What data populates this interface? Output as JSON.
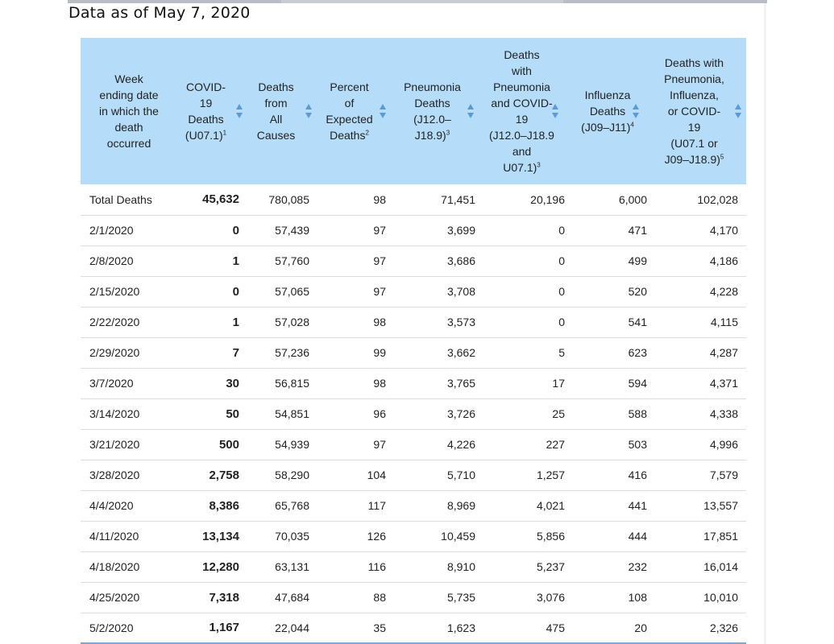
{
  "page_title": "Data as of May 7, 2020",
  "columns": [
    {
      "lines": [
        "Week",
        "ending date",
        "in which the",
        "death",
        "occurred"
      ],
      "sup": ""
    },
    {
      "lines": [
        "COVID-",
        "19",
        "Deaths",
        "(U07.1)"
      ],
      "sup": "1"
    },
    {
      "lines": [
        "Deaths",
        "from",
        "All",
        "Causes"
      ],
      "sup": ""
    },
    {
      "lines": [
        "Percent",
        "of",
        "Expected",
        "Deaths"
      ],
      "sup": "2"
    },
    {
      "lines": [
        "Pneumonia",
        "Deaths",
        "(J12.0–",
        "J18.9)"
      ],
      "sup": "3"
    },
    {
      "lines": [
        "Deaths",
        "with",
        "Pneumonia",
        "and COVID-",
        "19",
        "(J12.0–J18.9",
        "and",
        "U07.1)"
      ],
      "sup": "3"
    },
    {
      "lines": [
        "Influenza",
        "Deaths",
        "(J09–J11)"
      ],
      "sup": "4"
    },
    {
      "lines": [
        "Deaths with",
        "Pneumonia,",
        "Influenza,",
        "or COVID-",
        "19",
        "(U07.1 or",
        "J09–J18.9)"
      ],
      "sup": "5"
    }
  ],
  "rows": [
    {
      "week": "Total Deaths",
      "covid": "45,632",
      "all_causes": "780,085",
      "percent_expected": "98",
      "pneumonia": "71,451",
      "pneumonia_covid": "20,196",
      "influenza": "6,000",
      "pic": "102,028"
    },
    {
      "week": "2/1/2020",
      "covid": "0",
      "all_causes": "57,439",
      "percent_expected": "97",
      "pneumonia": "3,699",
      "pneumonia_covid": "0",
      "influenza": "471",
      "pic": "4,170"
    },
    {
      "week": "2/8/2020",
      "covid": "1",
      "all_causes": "57,760",
      "percent_expected": "97",
      "pneumonia": "3,686",
      "pneumonia_covid": "0",
      "influenza": "499",
      "pic": "4,186"
    },
    {
      "week": "2/15/2020",
      "covid": "0",
      "all_causes": "57,065",
      "percent_expected": "97",
      "pneumonia": "3,708",
      "pneumonia_covid": "0",
      "influenza": "520",
      "pic": "4,228"
    },
    {
      "week": "2/22/2020",
      "covid": "1",
      "all_causes": "57,028",
      "percent_expected": "98",
      "pneumonia": "3,573",
      "pneumonia_covid": "0",
      "influenza": "541",
      "pic": "4,115"
    },
    {
      "week": "2/29/2020",
      "covid": "7",
      "all_causes": "57,236",
      "percent_expected": "99",
      "pneumonia": "3,662",
      "pneumonia_covid": "5",
      "influenza": "623",
      "pic": "4,287"
    },
    {
      "week": "3/7/2020",
      "covid": "30",
      "all_causes": "56,815",
      "percent_expected": "98",
      "pneumonia": "3,765",
      "pneumonia_covid": "17",
      "influenza": "594",
      "pic": "4,371"
    },
    {
      "week": "3/14/2020",
      "covid": "50",
      "all_causes": "54,851",
      "percent_expected": "96",
      "pneumonia": "3,726",
      "pneumonia_covid": "25",
      "influenza": "588",
      "pic": "4,338"
    },
    {
      "week": "3/21/2020",
      "covid": "500",
      "all_causes": "54,939",
      "percent_expected": "97",
      "pneumonia": "4,226",
      "pneumonia_covid": "227",
      "influenza": "503",
      "pic": "4,996"
    },
    {
      "week": "3/28/2020",
      "covid": "2,758",
      "all_causes": "58,290",
      "percent_expected": "104",
      "pneumonia": "5,710",
      "pneumonia_covid": "1,257",
      "influenza": "416",
      "pic": "7,579"
    },
    {
      "week": "4/4/2020",
      "covid": "8,386",
      "all_causes": "65,768",
      "percent_expected": "117",
      "pneumonia": "8,969",
      "pneumonia_covid": "4,021",
      "influenza": "441",
      "pic": "13,557"
    },
    {
      "week": "4/11/2020",
      "covid": "13,134",
      "all_causes": "70,035",
      "percent_expected": "126",
      "pneumonia": "10,459",
      "pneumonia_covid": "5,856",
      "influenza": "444",
      "pic": "17,851"
    },
    {
      "week": "4/18/2020",
      "covid": "12,280",
      "all_causes": "63,131",
      "percent_expected": "116",
      "pneumonia": "8,910",
      "pneumonia_covid": "5,237",
      "influenza": "232",
      "pic": "16,014"
    },
    {
      "week": "4/25/2020",
      "covid": "7,318",
      "all_causes": "47,684",
      "percent_expected": "88",
      "pneumonia": "5,735",
      "pneumonia_covid": "3,076",
      "influenza": "108",
      "pic": "10,010"
    },
    {
      "week": "5/2/2020",
      "covid": "1,167",
      "all_causes": "22,044",
      "percent_expected": "35",
      "pneumonia": "1,623",
      "pneumonia_covid": "475",
      "influenza": "20",
      "pic": "2,326"
    }
  ],
  "colors": {
    "header_bg": "#b5dcf8",
    "sort_icon": "#5c9ad6",
    "row_border": "#d9dde2",
    "bottom_border": "#7aa9d6"
  },
  "icons": {
    "sort": "sort-arrows-icon"
  }
}
